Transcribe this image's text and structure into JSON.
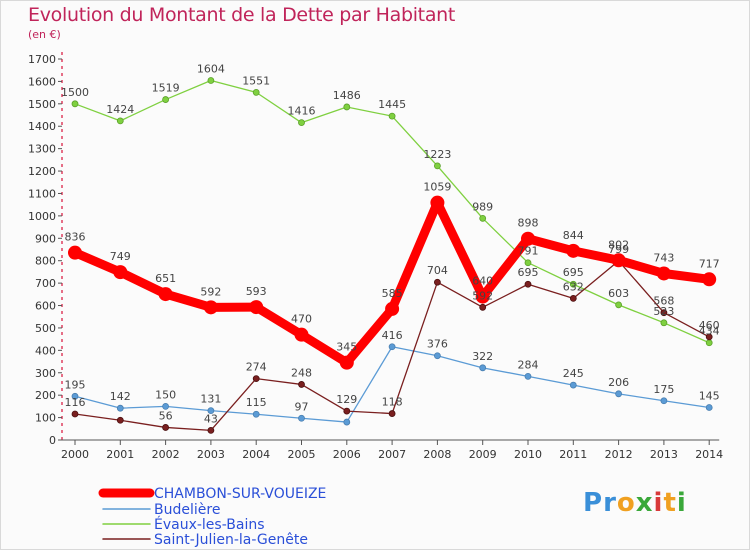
{
  "title": "Evolution du Montant de la Dette par Habitant",
  "subtitle": "(en €)",
  "logo": [
    "P",
    "r",
    "o",
    "x",
    "i",
    "t",
    "i"
  ],
  "logo_colors": [
    "#3a8fd8",
    "#3a8fd8",
    "#f0a020",
    "#3aa83a",
    "#d83a3a",
    "#f0a020",
    "#3aa83a"
  ],
  "chart_data": {
    "type": "line",
    "title": "Evolution du Montant de la Dette par Habitant",
    "ylabel": "(en €)",
    "xlabel": "",
    "x": [
      "2000",
      "2001",
      "2002",
      "2003",
      "2004",
      "2005",
      "2006",
      "2007",
      "2008",
      "2009",
      "2010",
      "2011",
      "2012",
      "2013",
      "2014"
    ],
    "ylim": [
      0,
      1700
    ],
    "yticks": [
      0,
      100,
      200,
      300,
      400,
      500,
      600,
      700,
      800,
      900,
      1000,
      1100,
      1200,
      1300,
      1400,
      1500,
      1600,
      1700
    ],
    "grid": false,
    "legend_position": "bottom-left",
    "series": [
      {
        "name": "CHAMBON-SUR-VOUEIZE",
        "color": "#ff0000",
        "values": [
          836,
          749,
          651,
          592,
          593,
          470,
          345,
          585,
          1059,
          640,
          898,
          844,
          802,
          743,
          717
        ]
      },
      {
        "name": "Budelière",
        "color": "#5b9bd5",
        "values": [
          195,
          142,
          150,
          131,
          115,
          97,
          80,
          416,
          376,
          322,
          284,
          245,
          206,
          175,
          145
        ]
      },
      {
        "name": "Évaux-les-Bains",
        "color": "#7fd040",
        "values": [
          1500,
          1424,
          1519,
          1604,
          1551,
          1416,
          1486,
          1445,
          1223,
          989,
          791,
          695,
          603,
          523,
          434
        ]
      },
      {
        "name": "Saint-Julien-la-Genête",
        "color": "#7a1f1f",
        "values": [
          116,
          88,
          56,
          43,
          274,
          248,
          129,
          118,
          704,
          592,
          695,
          632,
          799,
          568,
          460
        ]
      }
    ],
    "data_labels": {
      "CHAMBON-SUR-VOUEIZE": [
        "836",
        "749",
        "651",
        "592",
        "593",
        "470",
        "345",
        "585",
        "1059",
        "640",
        "898",
        "844",
        "802",
        "743",
        "717"
      ],
      "Budelière": [
        "195",
        "142",
        "150",
        "131",
        "115",
        "97",
        "",
        "416",
        "376",
        "322",
        "284",
        "245",
        "206",
        "175",
        "145"
      ],
      "Évaux-les-Bains": [
        "1500",
        "1424",
        "1519",
        "1604",
        "1551",
        "1416",
        "1486",
        "1445",
        "1223",
        "989",
        "791",
        "695",
        "603",
        "523",
        "434"
      ],
      "Saint-Julien-la-Genête": [
        "116",
        "",
        "56",
        "43",
        "274",
        "248",
        "129",
        "118",
        "704",
        "592",
        "695",
        "632",
        "799",
        "568",
        "460"
      ]
    }
  }
}
